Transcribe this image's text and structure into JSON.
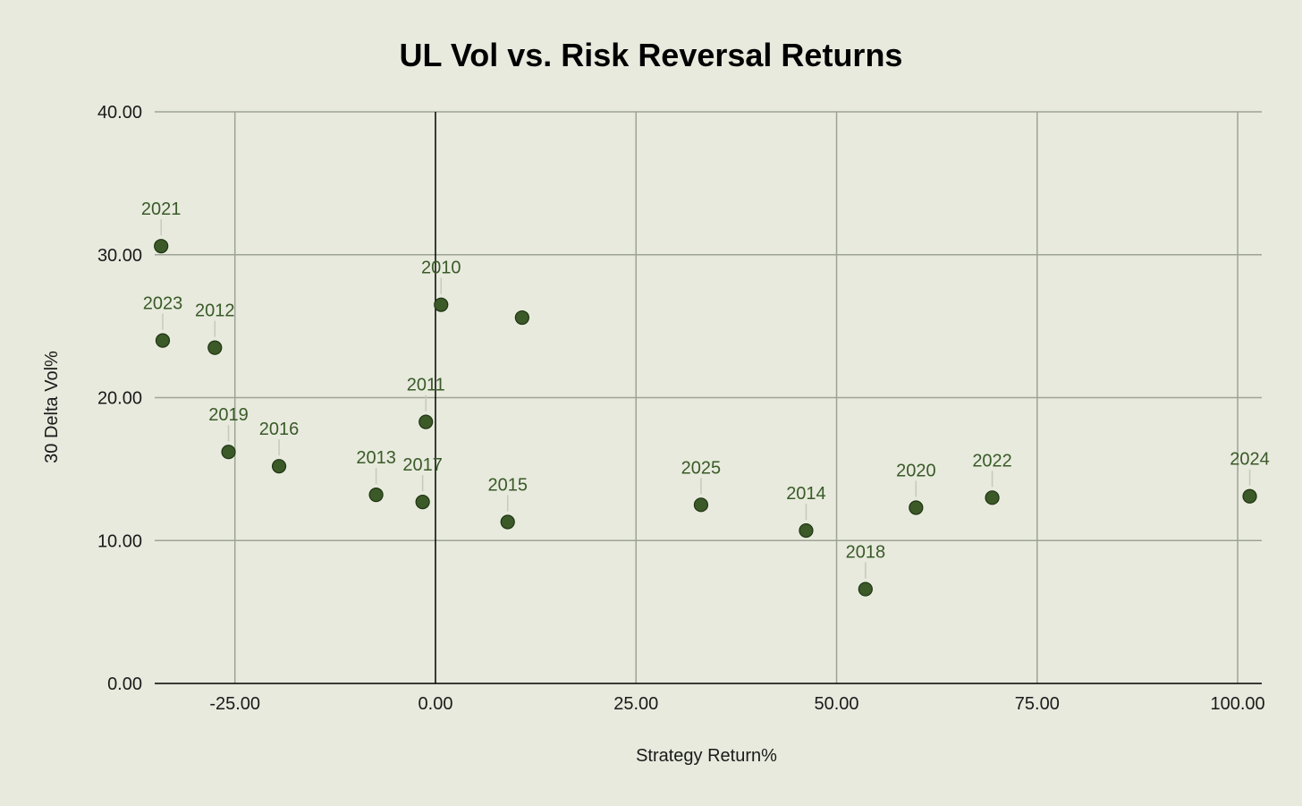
{
  "chart_data": {
    "type": "scatter",
    "title": "UL Vol vs. Risk Reversal Returns",
    "xlabel": "Strategy Return%",
    "ylabel": "30 Delta Vol%",
    "xlim": [
      -35,
      103
    ],
    "ylim": [
      0,
      40
    ],
    "x_ticks": [
      -25,
      0,
      25,
      50,
      75,
      100
    ],
    "x_tick_labels": [
      "-25.00",
      "0.00",
      "25.00",
      "50.00",
      "75.00",
      "100.00"
    ],
    "y_ticks": [
      0,
      10,
      20,
      30,
      40
    ],
    "y_tick_labels": [
      "0.00",
      "10.00",
      "20.00",
      "30.00",
      "40.00"
    ],
    "grid": true,
    "legend": "none",
    "colors": {
      "marker": "#3b5a28",
      "marker_stroke": "#1f3312",
      "label": "#3a5a28",
      "background": "#e7eadd",
      "grid": "#9fa396"
    },
    "points": [
      {
        "label": "2021",
        "x": -34.2,
        "y": 30.6
      },
      {
        "label": "2023",
        "x": -34.0,
        "y": 24.0
      },
      {
        "label": "2012",
        "x": -27.5,
        "y": 23.5
      },
      {
        "label": "2019",
        "x": -25.8,
        "y": 16.2
      },
      {
        "label": "2016",
        "x": -19.5,
        "y": 15.2
      },
      {
        "label": "2013",
        "x": -7.4,
        "y": 13.2
      },
      {
        "label": "2017",
        "x": -1.6,
        "y": 12.7
      },
      {
        "label": "2011",
        "x": -1.2,
        "y": 18.3
      },
      {
        "label": "2010",
        "x": 0.7,
        "y": 26.5
      },
      {
        "label": "",
        "x": 10.8,
        "y": 25.6
      },
      {
        "label": "2015",
        "x": 9.0,
        "y": 11.3
      },
      {
        "label": "2025",
        "x": 33.1,
        "y": 12.5
      },
      {
        "label": "2014",
        "x": 46.2,
        "y": 10.7
      },
      {
        "label": "2018",
        "x": 53.6,
        "y": 6.6
      },
      {
        "label": "2020",
        "x": 59.9,
        "y": 12.3
      },
      {
        "label": "2022",
        "x": 69.4,
        "y": 13.0
      },
      {
        "label": "2024",
        "x": 101.5,
        "y": 13.1
      }
    ]
  }
}
